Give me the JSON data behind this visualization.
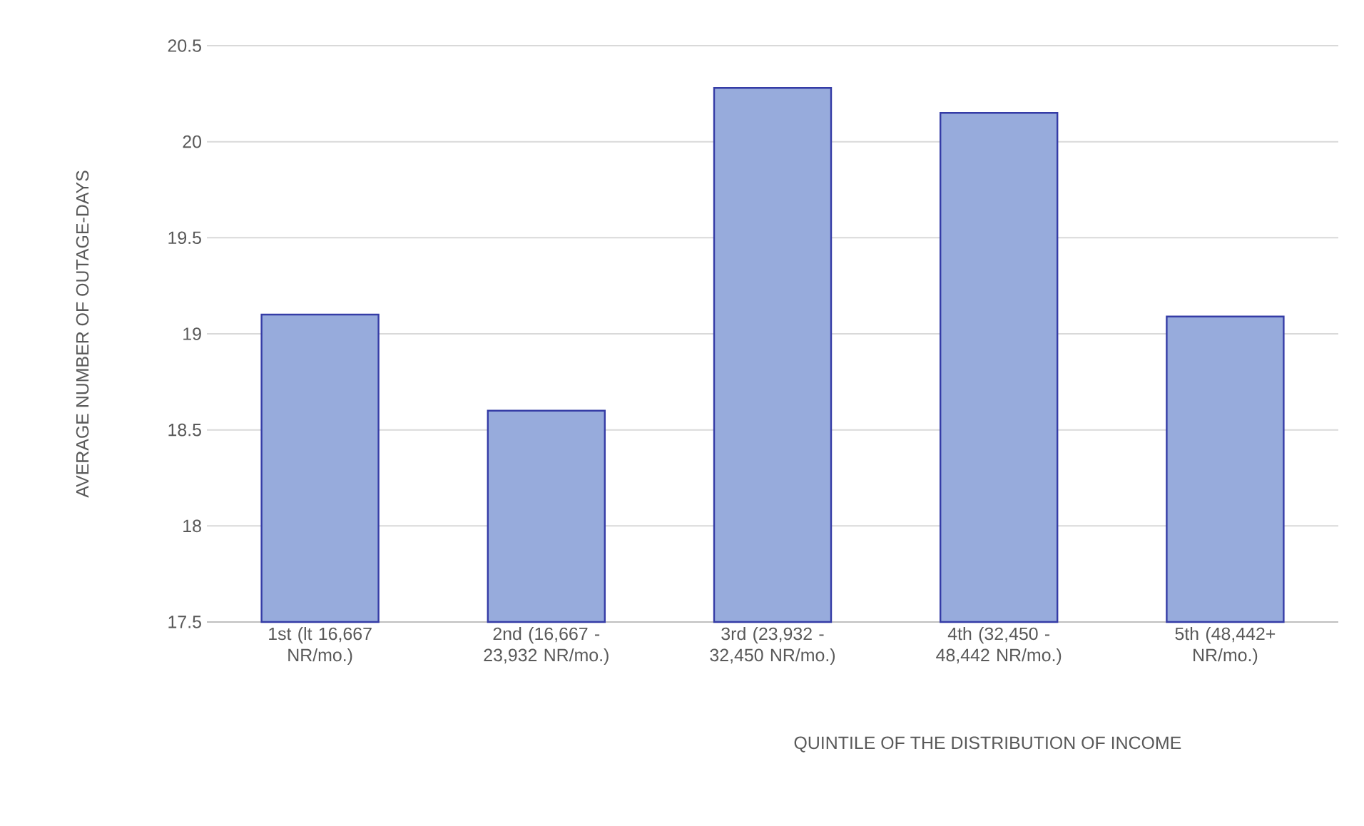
{
  "chart_data": {
    "type": "bar",
    "xlabel": "QUINTILE OF THE DISTRIBUTION OF INCOME",
    "ylabel": "AVERAGE NUMBER OF OUTAGE-DAYS",
    "categories": [
      "1st (lt 16,667 NR/mo.)",
      "2nd (16,667 - 23,932 NR/mo.)",
      "3rd (23,932 - 32,450 NR/mo.)",
      "4th (32,450 - 48,442 NR/mo.)",
      "5th (48,442+ NR/mo.)"
    ],
    "values": [
      19.1,
      18.6,
      20.28,
      20.15,
      19.09
    ],
    "color": "#97abdc",
    "ylim": [
      17.5,
      20.5
    ],
    "yticks": [
      17.5,
      18,
      18.5,
      19,
      19.5,
      20,
      20.5
    ],
    "grid": "y"
  }
}
